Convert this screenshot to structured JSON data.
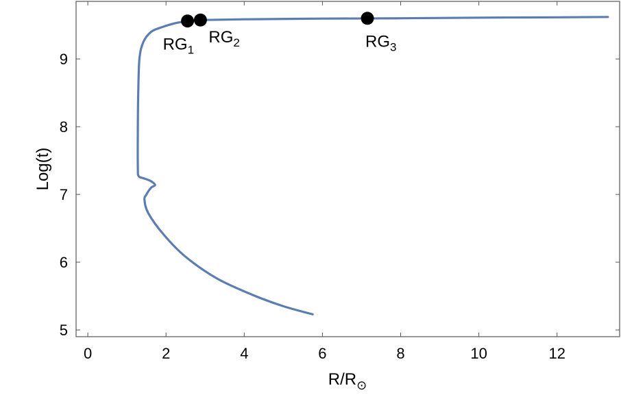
{
  "chart_data": {
    "type": "line",
    "title": "",
    "xlabel": "R/R",
    "xlabel_subscript": "⊙",
    "ylabel": "Log(t)",
    "xlim": [
      -0.3,
      13.6
    ],
    "ylim": [
      4.9,
      9.85
    ],
    "x_ticks": [
      0,
      2,
      4,
      6,
      8,
      10,
      12
    ],
    "y_ticks": [
      5,
      6,
      7,
      8,
      9
    ],
    "grid": false,
    "line_color": "#5B7DB1",
    "series": [
      {
        "x": [
          5.75,
          5.0,
          4.2,
          3.3,
          2.5,
          1.95,
          1.55,
          1.45,
          1.5,
          1.62,
          1.72,
          1.6,
          1.42,
          1.3,
          1.28,
          1.28,
          1.29,
          1.32,
          1.42,
          1.62,
          1.9,
          2.25,
          2.6,
          3.0,
          4.0,
          6.0,
          8.0,
          10.0,
          12.0,
          13.3
        ],
        "y": [
          5.23,
          5.35,
          5.52,
          5.76,
          6.08,
          6.4,
          6.72,
          6.92,
          7.0,
          7.1,
          7.14,
          7.2,
          7.24,
          7.27,
          7.4,
          8.0,
          8.5,
          9.0,
          9.25,
          9.4,
          9.47,
          9.53,
          9.56,
          9.575,
          9.585,
          9.595,
          9.6,
          9.61,
          9.615,
          9.62
        ]
      }
    ],
    "markers": [
      {
        "label": "RG",
        "sub": "1",
        "x": 2.55,
        "y": 9.56
      },
      {
        "label": "RG",
        "sub": "2",
        "x": 2.88,
        "y": 9.575
      },
      {
        "label": "RG",
        "sub": "3",
        "x": 7.15,
        "y": 9.6
      }
    ]
  }
}
